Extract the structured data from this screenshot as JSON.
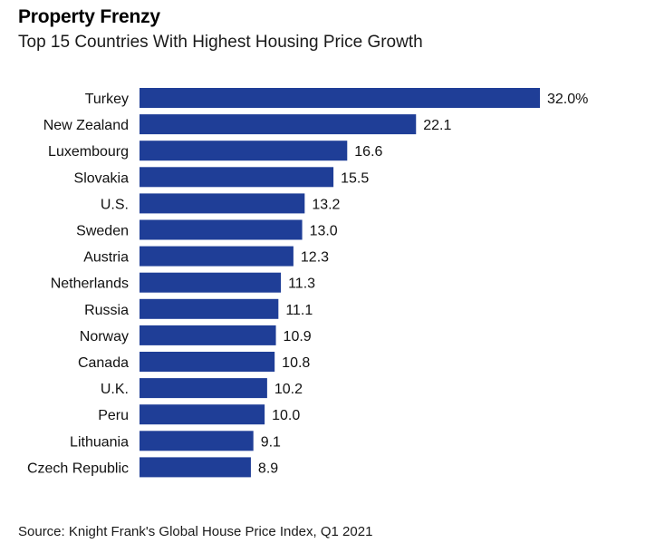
{
  "title": "Property Frenzy",
  "subtitle": "Top 15 Countries With Highest Housing Price Growth",
  "source": "Source: Knight Frank's Global House Price Index, Q1 2021",
  "colors": {
    "bar": "#1f3e97"
  },
  "chart_data": {
    "type": "bar",
    "orientation": "horizontal",
    "title": "Property Frenzy",
    "subtitle": "Top 15 Countries With Highest Housing Price Growth",
    "xlabel": "",
    "ylabel": "",
    "grid": false,
    "legend": "none",
    "xlim": [
      0,
      32
    ],
    "categories": [
      "Turkey",
      "New Zealand",
      "Luxembourg",
      "Slovakia",
      "U.S.",
      "Sweden",
      "Austria",
      "Netherlands",
      "Russia",
      "Norway",
      "Canada",
      "U.K.",
      "Peru",
      "Lithuania",
      "Czech Republic"
    ],
    "values": [
      32.0,
      22.1,
      16.6,
      15.5,
      13.2,
      13.0,
      12.3,
      11.3,
      11.1,
      10.9,
      10.8,
      10.2,
      10.0,
      9.1,
      8.9
    ],
    "data_labels": [
      "32.0%",
      "22.1",
      "16.6",
      "15.5",
      "13.2",
      "13.0",
      "12.3",
      "11.3",
      "11.1",
      "10.9",
      "10.8",
      "10.2",
      "10.0",
      "9.1",
      "8.9"
    ]
  }
}
